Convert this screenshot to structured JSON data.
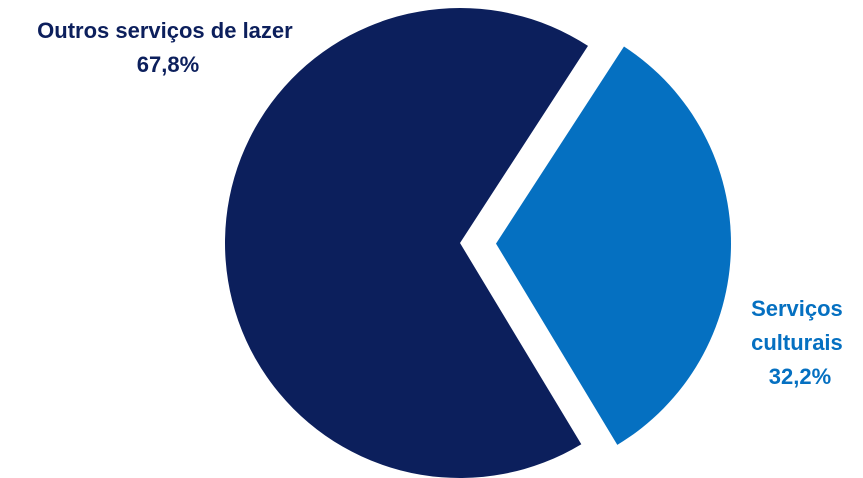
{
  "chart_data": {
    "type": "pie",
    "title": "",
    "slices": [
      {
        "label_lines": [
          "Outros serviços de lazer"
        ],
        "value_label": "67,8%",
        "value": 67.8,
        "color": "#0c1f5c"
      },
      {
        "label_lines": [
          "Serviços",
          "culturais"
        ],
        "value_label": "32,2%",
        "value": 32.2,
        "color": "#0570c1"
      }
    ],
    "legend": "none",
    "exploded_slice": "Serviços culturais",
    "label_colors": [
      "#0c1f5c",
      "#0570c1"
    ]
  }
}
